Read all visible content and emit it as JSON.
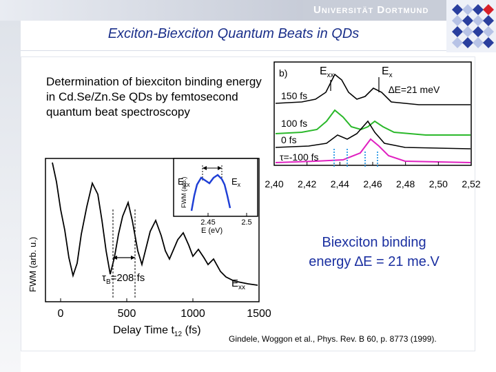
{
  "header": {
    "university": "Universität Dortmund",
    "title": "Exciton-Biexciton Quantum Beats in QDs"
  },
  "description": "Determination of biexciton binding energy in Cd.Se/Zn.Se QDs by femtosecond quantum beat spectroscopy",
  "result": {
    "line1": "Biexciton binding",
    "line2": "energy ∆E = 21 me.V"
  },
  "citation": "Gindele, Woggon et al., Phys. Rev. B 60, p. 8773 (1999).",
  "figure_b": {
    "panel_label": "b)",
    "exx_label": "E",
    "exx_sub": "xx",
    "ex_label": "E",
    "ex_sub": "x",
    "delta_label": "∆E=21 meV",
    "delays": [
      "150 fs",
      "100 fs",
      "0 fs",
      "τ=-100 fs"
    ],
    "x_ticks": [
      "2,40",
      "2,42",
      "2,44",
      "2,46",
      "2,48",
      "2,50",
      "2,52"
    ],
    "colors": [
      "#000000",
      "#2ab82a",
      "#000000",
      "#e020c0"
    ]
  },
  "figure_a": {
    "period_label": "τ",
    "period_sub": "B",
    "period_value": "=208 fs",
    "fwm_label": "FWM (arb. u.)",
    "exx_label": "E",
    "exx_sub": "xx",
    "x_ticks": [
      "0",
      "500",
      "1000",
      "1500"
    ],
    "x_label": "Delay Time  t",
    "x_label_sub": "12",
    "x_label_unit": " (fs)"
  },
  "figure_inset": {
    "exx_label": "E",
    "exx_sub": "xx",
    "ex_label": "E",
    "ex_sub": "x",
    "fwm_label": "FWM (arb.)",
    "x_ticks": [
      "2.45",
      "2.5"
    ],
    "x_label": "E (eV)",
    "curve_color": "#1f3fd6"
  },
  "logo_colors": {
    "blue": "#2a3f9e",
    "light": "#b7c3e6",
    "red": "#d8202a"
  }
}
